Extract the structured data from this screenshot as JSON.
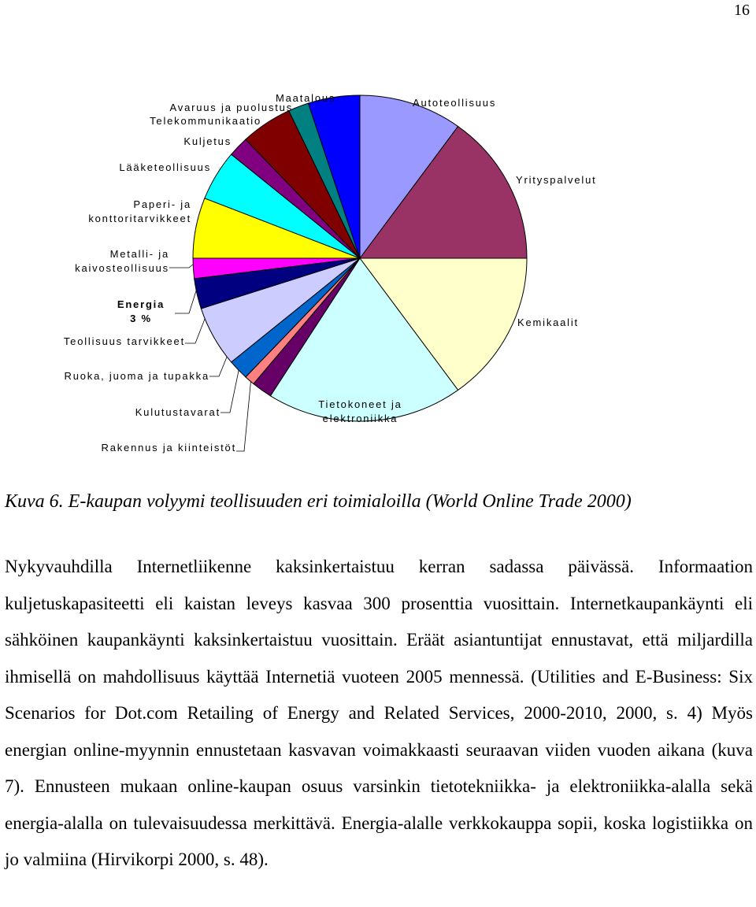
{
  "page_number": "16",
  "chart_data": {
    "type": "pie",
    "categories": [
      "Autoteollisuus",
      "Yrityspalvelut",
      "Kemikaalit",
      "Tietokoneet ja elektroniikka",
      "Rakennus ja kiinteistöt",
      "Kulutustavarat",
      "Ruoka, juoma ja tupakka",
      "Teollisuus tarvikkeet",
      "Energia",
      "Metalli- ja kaivosteollisuus",
      "Paperi- ja konttoritarvikkeet",
      "Lääketeollisuus",
      "Kuljetus",
      "Telekommunikaatio",
      "Avaruus ja puolustus",
      "Maatalous"
    ],
    "values": [
      10,
      15,
      15,
      19,
      2,
      1,
      2,
      6,
      3,
      2,
      6,
      5,
      2,
      5,
      2,
      5
    ],
    "value_labels": [
      null,
      null,
      null,
      null,
      null,
      null,
      null,
      null,
      "3 %",
      null,
      null,
      null,
      null,
      null,
      null,
      null
    ],
    "colors": [
      "#9999ff",
      "#993366",
      "#ffffcc",
      "#ccffff",
      "#660066",
      "#ff8080",
      "#0066cc",
      "#ccccff",
      "#000080",
      "#ff00ff",
      "#ffff00",
      "#00ffff",
      "#800080",
      "#800000",
      "#008080",
      "#0000ff"
    ]
  },
  "caption": "Kuva 6. E-kaupan volyymi teollisuuden eri toimialoilla (World Online Trade 2000)",
  "paragraph": "Nykyvauhdilla Internetliikenne kaksinkertaistuu kerran sadassa päivässä. Informaation kuljetuskapasiteetti eli kaistan leveys kasvaa 300 prosenttia vuosittain. Internetkaupankäynti eli sähköinen kaupankäynti kaksinkertaistuu vuosittain. Eräät asiantuntijat ennustavat, että miljardilla ihmisellä on mahdollisuus käyttää Internetiä vuoteen 2005 mennessä. (Utilities and E-Business: Six Scenarios for Dot.com Retailing of Energy and Related Services, 2000-2010, 2000, s. 4) Myös energian online-myynnin ennustetaan kasvavan voimakkaasti seuraavan viiden vuoden aikana (kuva 7). Ennusteen mukaan online-kaupan osuus varsinkin tietotekniikka- ja elektroniikka-alalla sekä energia-alalla on tulevaisuudessa merkittävä. Energia-alalle verkkokauppa sopii, koska logistiikka on jo valmiina (Hirvikorpi 2000, s. 48)."
}
